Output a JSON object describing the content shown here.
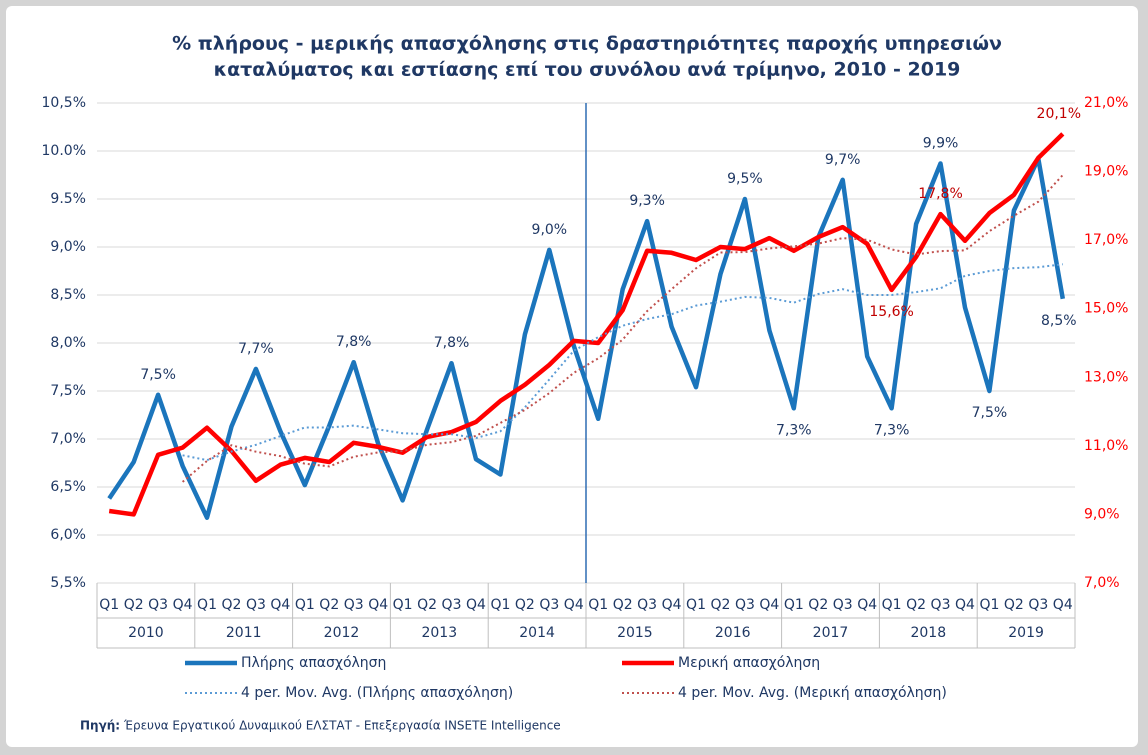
{
  "chart_data": {
    "type": "line",
    "title_lines": [
      "% πλήρους - μερικής απασχόλησης στις δραστηριότητες παροχής υπηρεσιών",
      "καταλύματος και εστίασης επί του συνόλου ανά τρίμηνο, 2010 - 2019"
    ],
    "categories": [
      "Q1",
      "Q2",
      "Q3",
      "Q4",
      "Q1",
      "Q2",
      "Q3",
      "Q4",
      "Q1",
      "Q2",
      "Q3",
      "Q4",
      "Q1",
      "Q2",
      "Q3",
      "Q4",
      "Q1",
      "Q2",
      "Q3",
      "Q4",
      "Q1",
      "Q2",
      "Q3",
      "Q4",
      "Q1",
      "Q2",
      "Q3",
      "Q4",
      "Q1",
      "Q2",
      "Q3",
      "Q4",
      "Q1",
      "Q2",
      "Q3",
      "Q4",
      "Q1",
      "Q2",
      "Q3",
      "Q4"
    ],
    "years": [
      "2010",
      "2011",
      "2012",
      "2013",
      "2014",
      "2015",
      "2016",
      "2017",
      "2018",
      "2019"
    ],
    "ylim": [
      5.5,
      10.5
    ],
    "yticks": [
      {
        "value": 5.5,
        "label": "5,5%"
      },
      {
        "value": 6.0,
        "label": "6,0%"
      },
      {
        "value": 6.5,
        "label": "6,5%"
      },
      {
        "value": 7.0,
        "label": "7,0%"
      },
      {
        "value": 7.5,
        "label": "7,5%"
      },
      {
        "value": 8.0,
        "label": "8,0%"
      },
      {
        "value": 8.5,
        "label": "8,5%"
      },
      {
        "value": 9.0,
        "label": "9,0%"
      },
      {
        "value": 9.5,
        "label": "9.5%"
      },
      {
        "value": 10.0,
        "label": "10.0%"
      },
      {
        "value": 10.5,
        "label": "10,5%"
      }
    ],
    "y2lim": [
      7,
      21
    ],
    "y2ticks": [
      {
        "value": 7,
        "label": "7,0%"
      },
      {
        "value": 9,
        "label": "9,0%"
      },
      {
        "value": 11,
        "label": "11,0%"
      },
      {
        "value": 13,
        "label": "13,0%"
      },
      {
        "value": 15,
        "label": "15,0%"
      },
      {
        "value": 17,
        "label": "17,0%"
      },
      {
        "value": 19,
        "label": "19,0%"
      },
      {
        "value": 21,
        "label": "21,0%"
      }
    ],
    "grid": true,
    "series": [
      {
        "name": "Πλήρης απασχόληση",
        "color": "#1b75bc",
        "style": "solid",
        "values": [
          6.38,
          6.76,
          7.46,
          6.72,
          6.18,
          7.13,
          7.73,
          7.08,
          6.52,
          7.14,
          7.8,
          6.95,
          6.36,
          7.1,
          7.79,
          6.79,
          6.63,
          8.09,
          8.97,
          7.97,
          7.21,
          8.56,
          9.27,
          8.17,
          7.54,
          8.72,
          9.5,
          8.13,
          7.32,
          9.1,
          9.7,
          7.86,
          7.32,
          9.24,
          9.87,
          8.37,
          7.5,
          9.38,
          9.92,
          8.46
        ],
        "value_labels": [
          null,
          null,
          "7,5%",
          null,
          null,
          null,
          "7,7%",
          null,
          null,
          null,
          "7,8%",
          null,
          null,
          null,
          "7,8%",
          null,
          null,
          null,
          "9,0%",
          null,
          null,
          null,
          "9,3%",
          null,
          null,
          null,
          "9,5%",
          null,
          "7,3%",
          null,
          "9,7%",
          null,
          "7,3%",
          null,
          "9,9%",
          null,
          "7,5%",
          null,
          null,
          "8,5%"
        ]
      },
      {
        "name": "Μερική απασχόληση",
        "color": "#ff0000",
        "style": "solid",
        "axis": "y2",
        "values": [
          9.1,
          9.0,
          10.74,
          10.95,
          11.53,
          10.85,
          9.98,
          10.45,
          10.65,
          10.53,
          11.09,
          10.97,
          10.8,
          11.26,
          11.4,
          11.7,
          12.31,
          12.78,
          13.36,
          14.06,
          14.0,
          14.96,
          16.69,
          16.63,
          16.42,
          16.8,
          16.74,
          17.06,
          16.69,
          17.09,
          17.38,
          16.89,
          15.55,
          16.51,
          17.76,
          16.98,
          17.79,
          18.32,
          19.4,
          20.1
        ],
        "value_labels": [
          null,
          null,
          null,
          null,
          null,
          null,
          null,
          null,
          null,
          null,
          null,
          null,
          null,
          null,
          null,
          null,
          null,
          null,
          null,
          null,
          null,
          null,
          null,
          null,
          null,
          null,
          null,
          null,
          null,
          null,
          null,
          null,
          "15,6%",
          null,
          "17,8%",
          null,
          null,
          null,
          null,
          "20,1%"
        ]
      },
      {
        "name": "4 per. Mov. Avg. (Πλήρης απασχόληση)",
        "color": "#5b9bd5",
        "style": "dotted",
        "values": [
          null,
          null,
          null,
          6.83,
          6.78,
          6.87,
          6.94,
          7.03,
          7.12,
          7.12,
          7.14,
          7.1,
          7.06,
          7.05,
          7.05,
          7.01,
          7.08,
          7.33,
          7.62,
          7.92,
          8.06,
          8.18,
          8.25,
          8.3,
          8.39,
          8.43,
          8.48,
          8.47,
          8.42,
          8.51,
          8.56,
          8.5,
          8.5,
          8.53,
          8.57,
          8.7,
          8.75,
          8.78,
          8.79,
          8.82
        ]
      },
      {
        "name": "4 per. Mov. Avg. (Μερική απασχόληση)",
        "color": "#c0504d",
        "style": "dotted",
        "axis": "y2",
        "values": [
          null,
          null,
          null,
          9.95,
          10.56,
          11.02,
          10.83,
          10.7,
          10.48,
          10.4,
          10.68,
          10.81,
          10.85,
          11.03,
          11.11,
          11.29,
          11.67,
          12.05,
          12.54,
          13.13,
          13.55,
          14.1,
          14.93,
          15.57,
          16.18,
          16.64,
          16.65,
          16.76,
          16.82,
          16.9,
          17.06,
          17.01,
          16.73,
          16.58,
          16.68,
          16.7,
          17.26,
          17.71,
          18.12,
          18.9
        ]
      }
    ],
    "source_label": "Πηγή:",
    "source_text": "Έρευνα Εργατικού Δυναμικού ΕΛΣΤΑΤ - Επεξεργασία INSETE Intelligence"
  }
}
